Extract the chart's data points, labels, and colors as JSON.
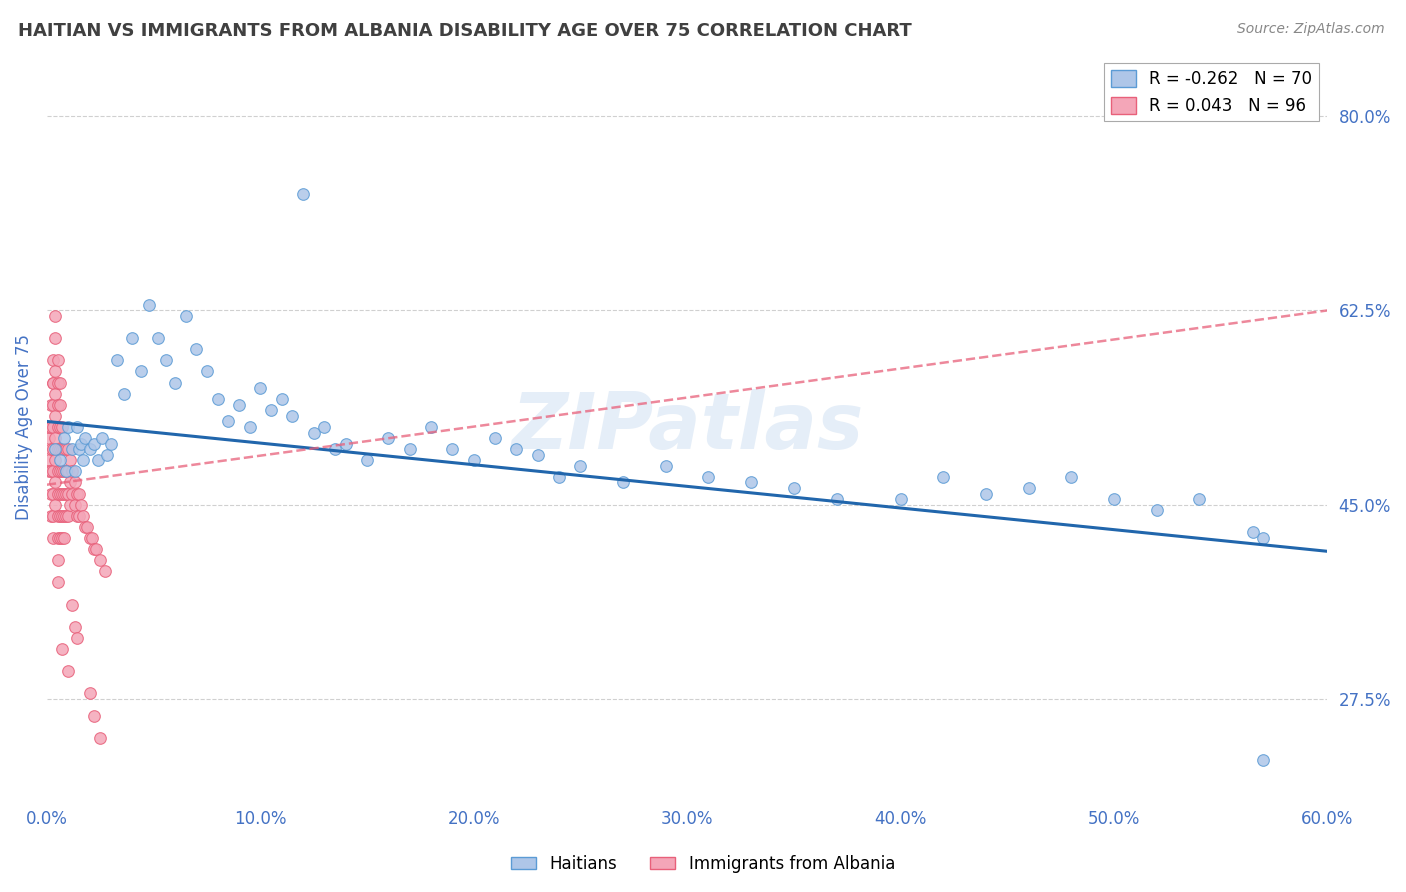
{
  "title": "HAITIAN VS IMMIGRANTS FROM ALBANIA DISABILITY AGE OVER 75 CORRELATION CHART",
  "source": "Source: ZipAtlas.com",
  "ylabel": "Disability Age Over 75",
  "xlim": [
    0.0,
    0.6
  ],
  "ylim": [
    0.185,
    0.855
  ],
  "yticks": [
    0.275,
    0.45,
    0.625,
    0.8
  ],
  "ytick_labels": [
    "27.5%",
    "45.0%",
    "62.5%",
    "80.0%"
  ],
  "xticks": [
    0.0,
    0.1,
    0.2,
    0.3,
    0.4,
    0.5,
    0.6
  ],
  "xtick_labels": [
    "0.0%",
    "10.0%",
    "20.0%",
    "30.0%",
    "40.0%",
    "50.0%",
    "60.0%"
  ],
  "haitian_color": "#aec6e8",
  "albania_color": "#f4a6b8",
  "haitian_edge": "#5b9bd5",
  "albania_edge": "#e8607a",
  "trend_haitian_color": "#2166ac",
  "trend_albania_color": "#e8607a",
  "haitian_R": -0.262,
  "haitian_N": 70,
  "albania_R": 0.043,
  "albania_N": 96,
  "background_color": "#ffffff",
  "grid_color": "#d0d0d0",
  "axis_color": "#4472c4",
  "title_color": "#404040",
  "watermark": "ZIPatlas",
  "haitian_trend_x0": 0.0,
  "haitian_trend_y0": 0.525,
  "haitian_trend_x1": 0.6,
  "haitian_trend_y1": 0.408,
  "albania_trend_x0": 0.0,
  "albania_trend_y0": 0.468,
  "albania_trend_x1": 0.6,
  "albania_trend_y1": 0.625,
  "haitian_x": [
    0.004,
    0.006,
    0.008,
    0.009,
    0.01,
    0.012,
    0.013,
    0.014,
    0.015,
    0.016,
    0.017,
    0.018,
    0.02,
    0.022,
    0.024,
    0.026,
    0.028,
    0.03,
    0.033,
    0.036,
    0.04,
    0.044,
    0.048,
    0.052,
    0.056,
    0.06,
    0.065,
    0.07,
    0.075,
    0.08,
    0.085,
    0.09,
    0.095,
    0.1,
    0.105,
    0.11,
    0.115,
    0.12,
    0.125,
    0.13,
    0.135,
    0.14,
    0.15,
    0.16,
    0.17,
    0.18,
    0.19,
    0.2,
    0.21,
    0.22,
    0.23,
    0.24,
    0.25,
    0.27,
    0.29,
    0.31,
    0.33,
    0.35,
    0.37,
    0.4,
    0.42,
    0.44,
    0.46,
    0.48,
    0.5,
    0.52,
    0.54,
    0.565,
    0.57,
    0.57
  ],
  "haitian_y": [
    0.5,
    0.49,
    0.51,
    0.48,
    0.52,
    0.5,
    0.48,
    0.52,
    0.5,
    0.505,
    0.49,
    0.51,
    0.5,
    0.505,
    0.49,
    0.51,
    0.495,
    0.505,
    0.58,
    0.55,
    0.6,
    0.57,
    0.63,
    0.6,
    0.58,
    0.56,
    0.62,
    0.59,
    0.57,
    0.545,
    0.525,
    0.54,
    0.52,
    0.555,
    0.535,
    0.545,
    0.53,
    0.73,
    0.515,
    0.52,
    0.5,
    0.505,
    0.49,
    0.51,
    0.5,
    0.52,
    0.5,
    0.49,
    0.51,
    0.5,
    0.495,
    0.475,
    0.485,
    0.47,
    0.485,
    0.475,
    0.47,
    0.465,
    0.455,
    0.455,
    0.475,
    0.46,
    0.465,
    0.475,
    0.455,
    0.445,
    0.455,
    0.425,
    0.42,
    0.22
  ],
  "albania_x": [
    0.001,
    0.001,
    0.001,
    0.001,
    0.002,
    0.002,
    0.002,
    0.002,
    0.002,
    0.002,
    0.003,
    0.003,
    0.003,
    0.003,
    0.003,
    0.003,
    0.003,
    0.003,
    0.003,
    0.003,
    0.004,
    0.004,
    0.004,
    0.004,
    0.004,
    0.004,
    0.004,
    0.004,
    0.004,
    0.005,
    0.005,
    0.005,
    0.005,
    0.005,
    0.005,
    0.005,
    0.005,
    0.005,
    0.005,
    0.005,
    0.006,
    0.006,
    0.006,
    0.006,
    0.006,
    0.006,
    0.006,
    0.006,
    0.007,
    0.007,
    0.007,
    0.007,
    0.007,
    0.007,
    0.007,
    0.008,
    0.008,
    0.008,
    0.008,
    0.008,
    0.009,
    0.009,
    0.009,
    0.009,
    0.01,
    0.01,
    0.01,
    0.01,
    0.01,
    0.011,
    0.011,
    0.011,
    0.012,
    0.012,
    0.013,
    0.013,
    0.014,
    0.014,
    0.015,
    0.015,
    0.016,
    0.017,
    0.018,
    0.019,
    0.02,
    0.021,
    0.022,
    0.023,
    0.025,
    0.027,
    0.012,
    0.013,
    0.014,
    0.02,
    0.022,
    0.025
  ],
  "albania_y": [
    0.51,
    0.49,
    0.48,
    0.52,
    0.54,
    0.52,
    0.5,
    0.48,
    0.46,
    0.44,
    0.56,
    0.54,
    0.52,
    0.5,
    0.48,
    0.46,
    0.44,
    0.42,
    0.58,
    0.56,
    0.57,
    0.55,
    0.53,
    0.51,
    0.49,
    0.47,
    0.45,
    0.62,
    0.6,
    0.58,
    0.56,
    0.54,
    0.52,
    0.5,
    0.48,
    0.46,
    0.44,
    0.42,
    0.4,
    0.38,
    0.56,
    0.54,
    0.52,
    0.5,
    0.48,
    0.46,
    0.44,
    0.42,
    0.52,
    0.5,
    0.48,
    0.46,
    0.44,
    0.42,
    0.32,
    0.5,
    0.48,
    0.46,
    0.44,
    0.42,
    0.5,
    0.48,
    0.46,
    0.44,
    0.5,
    0.48,
    0.46,
    0.44,
    0.3,
    0.49,
    0.47,
    0.45,
    0.48,
    0.46,
    0.47,
    0.45,
    0.46,
    0.44,
    0.46,
    0.44,
    0.45,
    0.44,
    0.43,
    0.43,
    0.42,
    0.42,
    0.41,
    0.41,
    0.4,
    0.39,
    0.36,
    0.34,
    0.33,
    0.28,
    0.26,
    0.24
  ]
}
